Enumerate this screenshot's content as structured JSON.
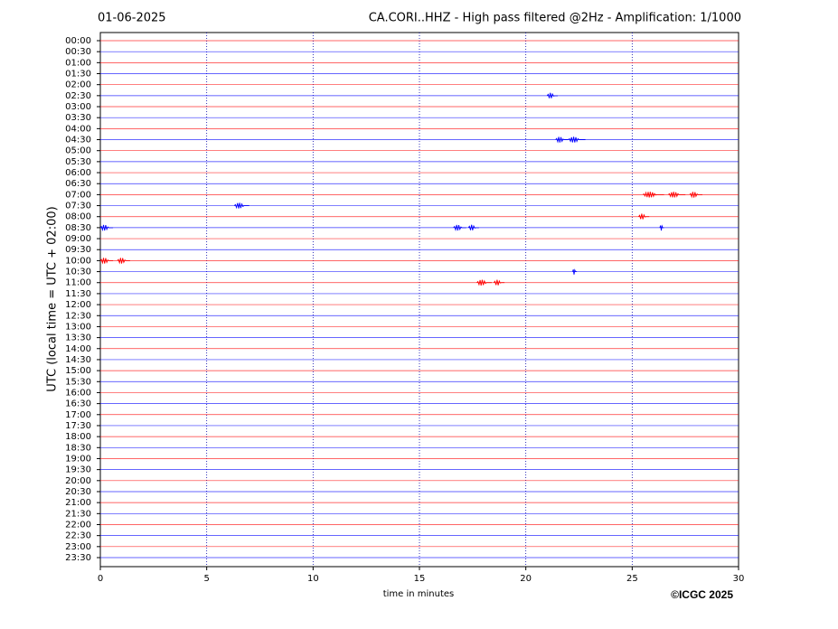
{
  "chart_data": {
    "type": "helicorder",
    "date": "01-06-2025",
    "title": "CA.CORI..HHZ - High pass filtered @2Hz - Amplification: 1/1000",
    "x_label": "time in minutes",
    "y_label": "UTC (local time = UTC + 02:00)",
    "copyright": "©ICGC 2025",
    "xlim": [
      0,
      30
    ],
    "xticks": [
      0,
      5,
      10,
      15,
      20,
      25,
      30
    ],
    "grid": true,
    "colors": [
      "#ff0000",
      "#0000ff"
    ],
    "traces": [
      {
        "label": "00:00",
        "events": []
      },
      {
        "label": "00:30",
        "events": []
      },
      {
        "label": "01:00",
        "events": []
      },
      {
        "label": "01:30",
        "events": []
      },
      {
        "label": "02:00",
        "events": []
      },
      {
        "label": "02:30",
        "events": [
          [
            21.0,
            21.5
          ]
        ]
      },
      {
        "label": "03:00",
        "events": []
      },
      {
        "label": "03:30",
        "events": []
      },
      {
        "label": "04:00",
        "events": []
      },
      {
        "label": "04:30",
        "events": [
          [
            21.4,
            22.0
          ],
          [
            22.0,
            22.8
          ]
        ]
      },
      {
        "label": "05:00",
        "events": []
      },
      {
        "label": "05:30",
        "events": []
      },
      {
        "label": "06:00",
        "events": []
      },
      {
        "label": "06:30",
        "events": []
      },
      {
        "label": "07:00",
        "events": [
          [
            25.5,
            26.5
          ],
          [
            26.7,
            27.5
          ],
          [
            27.7,
            28.3
          ]
        ]
      },
      {
        "label": "07:30",
        "events": [
          [
            6.3,
            7.0
          ]
        ]
      },
      {
        "label": "08:00",
        "events": [
          [
            25.3,
            25.8
          ]
        ]
      },
      {
        "label": "08:30",
        "events": [
          [
            0.0,
            0.6
          ],
          [
            16.6,
            17.2
          ],
          [
            17.3,
            17.8
          ],
          [
            26.3,
            26.5
          ]
        ]
      },
      {
        "label": "09:00",
        "events": []
      },
      {
        "label": "09:30",
        "events": []
      },
      {
        "label": "10:00",
        "events": [
          [
            0.0,
            0.6
          ],
          [
            0.8,
            1.4
          ]
        ]
      },
      {
        "label": "10:30",
        "events": [
          [
            22.2,
            22.4
          ]
        ]
      },
      {
        "label": "11:00",
        "events": [
          [
            17.7,
            18.4
          ],
          [
            18.5,
            19.0
          ]
        ]
      },
      {
        "label": "11:30",
        "events": []
      },
      {
        "label": "12:00",
        "events": []
      },
      {
        "label": "12:30",
        "events": []
      },
      {
        "label": "13:00",
        "events": []
      },
      {
        "label": "13:30",
        "events": []
      },
      {
        "label": "14:00",
        "events": []
      },
      {
        "label": "14:30",
        "events": []
      },
      {
        "label": "15:00",
        "events": []
      },
      {
        "label": "15:30",
        "events": []
      },
      {
        "label": "16:00",
        "events": []
      },
      {
        "label": "16:30",
        "events": []
      },
      {
        "label": "17:00",
        "events": []
      },
      {
        "label": "17:30",
        "events": []
      },
      {
        "label": "18:00",
        "events": []
      },
      {
        "label": "18:30",
        "events": []
      },
      {
        "label": "19:00",
        "events": []
      },
      {
        "label": "19:30",
        "events": []
      },
      {
        "label": "20:00",
        "events": []
      },
      {
        "label": "20:30",
        "events": []
      },
      {
        "label": "21:00",
        "events": []
      },
      {
        "label": "21:30",
        "events": []
      },
      {
        "label": "22:00",
        "events": []
      },
      {
        "label": "22:30",
        "events": []
      },
      {
        "label": "23:00",
        "events": []
      },
      {
        "label": "23:30",
        "events": []
      }
    ]
  }
}
